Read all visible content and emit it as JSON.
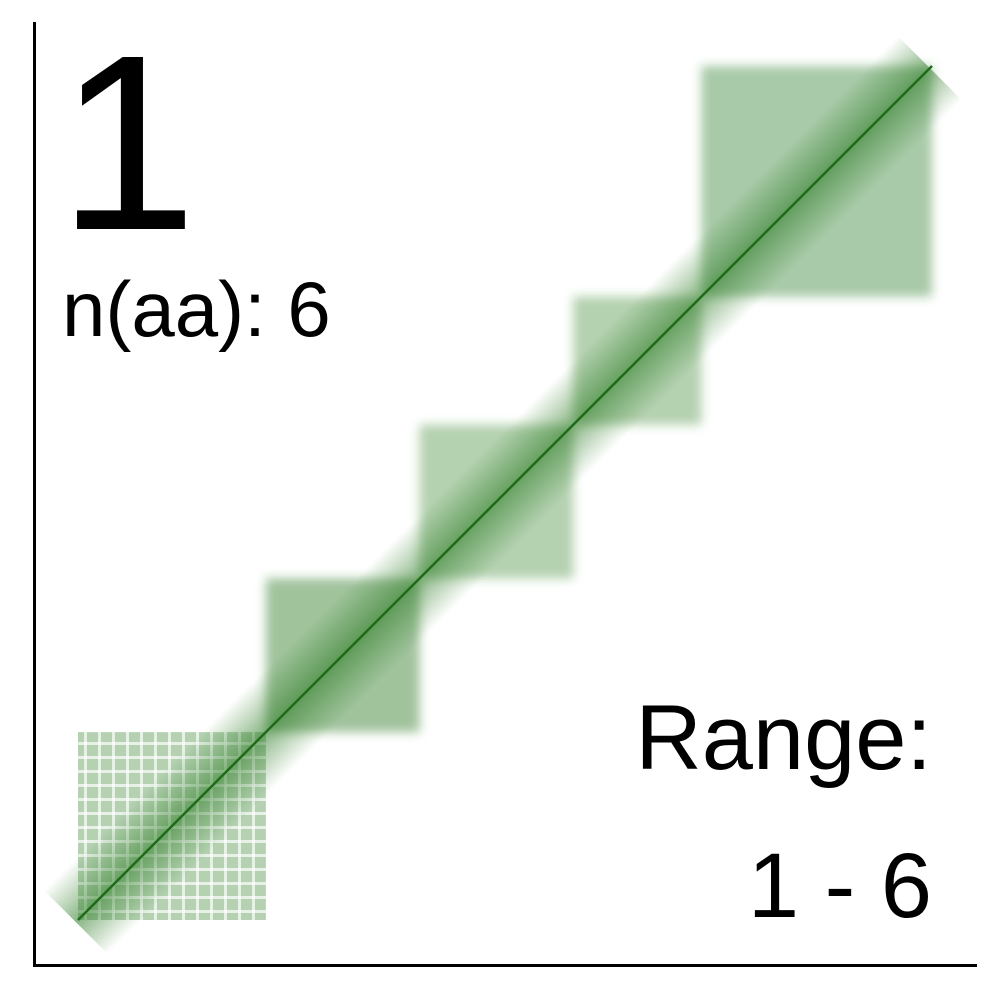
{
  "panel": {
    "number": "1",
    "n_aa_label": "n(aa): 6",
    "range_title": "Range:",
    "range_value": "1 - 6"
  },
  "chart_data": {
    "type": "heatmap",
    "title": "",
    "xlabel": "",
    "ylabel": "",
    "color": "#2a7a22",
    "diagonal": true,
    "blocks": [
      {
        "x": [
          0.0,
          0.22
        ],
        "y": [
          0.0,
          0.22
        ],
        "density": 0.55
      },
      {
        "x": [
          0.22,
          0.4
        ],
        "y": [
          0.22,
          0.4
        ],
        "density": 0.45
      },
      {
        "x": [
          0.4,
          0.58
        ],
        "y": [
          0.4,
          0.58
        ],
        "density": 0.35
      },
      {
        "x": [
          0.58,
          0.73
        ],
        "y": [
          0.58,
          0.73
        ],
        "density": 0.35
      },
      {
        "x": [
          0.73,
          1.0
        ],
        "y": [
          0.73,
          1.0
        ],
        "density": 0.4
      }
    ],
    "grid": false
  }
}
